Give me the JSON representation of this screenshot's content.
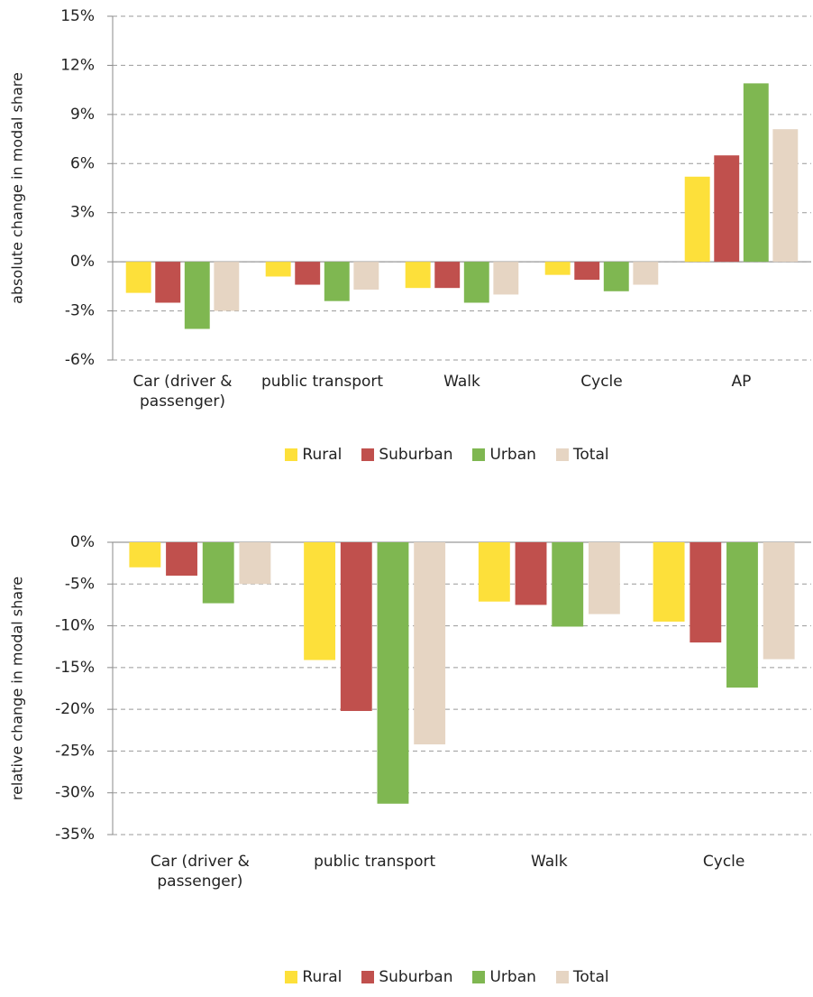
{
  "chart_data": [
    {
      "type": "bar",
      "y_label": "absolute change in modal share",
      "categories": [
        "Car (driver & passenger)",
        "public transport",
        "Walk",
        "Cycle",
        "AP"
      ],
      "series": [
        {
          "name": "Rural",
          "color": "#fde03a",
          "values": [
            -1.9,
            -0.9,
            -1.6,
            -0.8,
            5.2
          ]
        },
        {
          "name": "Suburban",
          "color": "#c0504d",
          "values": [
            -2.5,
            -1.4,
            -1.6,
            -1.1,
            6.5
          ]
        },
        {
          "name": "Urban",
          "color": "#7fb751",
          "values": [
            -4.1,
            -2.4,
            -2.5,
            -1.8,
            10.9
          ]
        },
        {
          "name": "Total",
          "color": "#e6d5c3",
          "values": [
            -3.0,
            -1.7,
            -2.0,
            -1.4,
            8.1
          ]
        }
      ],
      "ylim": [
        -6,
        15
      ],
      "yticks": [
        {
          "value": -6,
          "label": "-6%"
        },
        {
          "value": -3,
          "label": "-3%"
        },
        {
          "value": 0,
          "label": "0%"
        },
        {
          "value": 3,
          "label": "3%"
        },
        {
          "value": 6,
          "label": "6%"
        },
        {
          "value": 9,
          "label": "9%"
        },
        {
          "value": 12,
          "label": "12%"
        },
        {
          "value": 15,
          "label": "15%"
        }
      ],
      "grid": true,
      "legend": "bottom"
    },
    {
      "type": "bar",
      "y_label": "relative change in modal share",
      "categories": [
        "Car (driver & passenger)",
        "public transport",
        "Walk",
        "Cycle"
      ],
      "series": [
        {
          "name": "Rural",
          "color": "#fde03a",
          "values": [
            -3.0,
            -14.1,
            -7.1,
            -9.5
          ]
        },
        {
          "name": "Suburban",
          "color": "#c0504d",
          "values": [
            -4.0,
            -20.2,
            -7.5,
            -12.0
          ]
        },
        {
          "name": "Urban",
          "color": "#7fb751",
          "values": [
            -7.3,
            -31.3,
            -10.1,
            -17.4
          ]
        },
        {
          "name": "Total",
          "color": "#e6d5c3",
          "values": [
            -5.0,
            -24.2,
            -8.6,
            -14.0
          ]
        }
      ],
      "ylim": [
        -35,
        0
      ],
      "yticks": [
        {
          "value": -35,
          "label": "-35%"
        },
        {
          "value": -30,
          "label": "-30%"
        },
        {
          "value": -25,
          "label": "-25%"
        },
        {
          "value": -20,
          "label": "-20%"
        },
        {
          "value": -15,
          "label": "-15%"
        },
        {
          "value": -10,
          "label": "-10%"
        },
        {
          "value": -5,
          "label": "-5%"
        },
        {
          "value": 0,
          "label": "0%"
        }
      ],
      "grid": true,
      "legend": "bottom"
    }
  ]
}
